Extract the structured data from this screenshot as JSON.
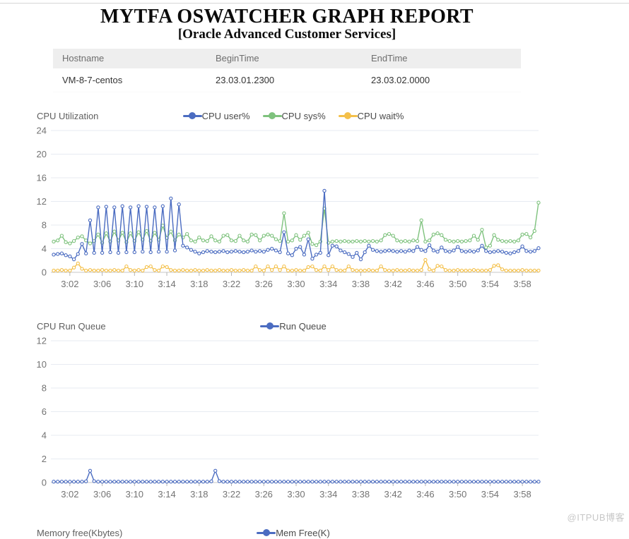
{
  "page": {
    "title": "MYTFA OSWATCHER GRAPH REPORT",
    "subtitle": "[Oracle Advanced Customer Services]",
    "watermark": "@ITPUB博客"
  },
  "info_table": {
    "columns": [
      "Hostname",
      "BeginTime",
      "EndTime"
    ],
    "rows": [
      [
        "VM-8-7-centos",
        "23.03.01.2300",
        "23.03.02.0000"
      ]
    ]
  },
  "style": {
    "grid_color": "#e7ebf2",
    "axis_color": "#c7c7c7",
    "tick_color": "#b5b5b5",
    "tick_label_color": "#737373"
  },
  "chart_data": [
    {
      "type": "line",
      "title": "CPU Utilization",
      "x_start": "3:00",
      "x_interval_seconds": 30,
      "x_tick_labels": [
        "3:02",
        "3:06",
        "3:10",
        "3:14",
        "3:18",
        "3:22",
        "3:26",
        "3:30",
        "3:34",
        "3:38",
        "3:42",
        "3:46",
        "3:50",
        "3:54",
        "3:58"
      ],
      "x_tick_first_index": 4,
      "x_tick_step": 8,
      "ylim": [
        0,
        24
      ],
      "yticks": [
        0,
        4,
        8,
        12,
        16,
        20,
        24
      ],
      "series": [
        {
          "name": "CPU user%",
          "color": "#4b6cc1",
          "values": [
            3.0,
            3.1,
            3.2,
            2.9,
            2.7,
            2.2,
            3.1,
            4.8,
            3.2,
            8.8,
            3.3,
            11.0,
            3.3,
            11.1,
            3.4,
            11.0,
            3.3,
            11.2,
            3.4,
            11.0,
            3.4,
            11.2,
            3.5,
            11.1,
            3.4,
            11.0,
            3.5,
            11.2,
            3.5,
            12.5,
            3.7,
            11.5,
            4.5,
            4.2,
            3.8,
            3.5,
            3.2,
            3.4,
            3.6,
            3.5,
            3.4,
            3.5,
            3.6,
            3.4,
            3.5,
            3.6,
            3.5,
            3.4,
            3.5,
            3.7,
            3.5,
            3.6,
            3.5,
            3.8,
            4.0,
            3.7,
            3.4,
            6.8,
            3.2,
            2.9,
            4.0,
            4.3,
            3.0,
            5.6,
            2.3,
            3.0,
            3.3,
            13.8,
            2.9,
            4.5,
            4.4,
            3.7,
            3.4,
            3.1,
            2.6,
            3.3,
            2.2,
            3.4,
            4.5,
            3.8,
            3.6,
            3.5,
            3.6,
            3.7,
            3.6,
            3.5,
            3.6,
            3.5,
            3.7,
            3.6,
            4.3,
            3.8,
            3.6,
            4.6,
            3.7,
            3.5,
            4.2,
            3.6,
            3.5,
            3.7,
            4.3,
            3.6,
            3.5,
            3.6,
            3.5,
            3.7,
            4.5,
            3.6,
            3.4,
            3.5,
            3.6,
            3.5,
            3.3,
            3.2,
            3.4,
            3.6,
            4.4,
            3.6,
            3.5,
            3.6,
            4.1
          ]
        },
        {
          "name": "CPU sys%",
          "color": "#7ec27d",
          "values": [
            5.2,
            5.4,
            6.2,
            5.1,
            4.9,
            5.3,
            5.9,
            6.1,
            5.4,
            4.9,
            5.3,
            6.4,
            5.0,
            6.6,
            5.2,
            6.9,
            5.4,
            6.7,
            5.1,
            6.6,
            5.3,
            6.8,
            5.5,
            7.0,
            5.3,
            6.7,
            5.5,
            7.9,
            5.8,
            6.9,
            5.4,
            6.4,
            5.9,
            6.5,
            5.4,
            5.2,
            5.9,
            5.4,
            5.3,
            6.1,
            5.4,
            5.2,
            6.2,
            6.3,
            5.4,
            5.3,
            6.2,
            5.4,
            5.2,
            6.4,
            6.3,
            5.4,
            6.2,
            6.4,
            6.2,
            5.6,
            5.3,
            10.0,
            5.2,
            5.4,
            6.3,
            5.5,
            6.2,
            6.7,
            4.8,
            4.6,
            5.2,
            10.8,
            5.0,
            5.2,
            5.3,
            5.2,
            5.3,
            5.2,
            5.2,
            5.3,
            5.2,
            5.3,
            5.2,
            5.3,
            5.2,
            5.4,
            6.3,
            6.5,
            6.2,
            5.4,
            5.2,
            5.3,
            5.2,
            5.4,
            5.3,
            8.8,
            5.2,
            5.4,
            6.4,
            6.6,
            6.3,
            5.5,
            5.3,
            5.2,
            5.3,
            5.2,
            5.3,
            5.4,
            6.2,
            5.5,
            7.2,
            4.2,
            4.5,
            6.3,
            5.5,
            5.3,
            5.2,
            5.3,
            5.2,
            5.4,
            6.4,
            6.5,
            5.9,
            7.0,
            11.8
          ]
        },
        {
          "name": "CPU wait%",
          "color": "#f4c04a",
          "values": [
            0.3,
            0.3,
            0.4,
            0.3,
            0.3,
            0.8,
            1.5,
            0.6,
            0.3,
            0.4,
            0.3,
            0.3,
            0.4,
            0.3,
            0.3,
            0.4,
            0.3,
            0.3,
            1.0,
            0.4,
            0.3,
            0.4,
            0.3,
            0.9,
            1.0,
            0.4,
            0.3,
            1.0,
            0.9,
            0.4,
            0.3,
            0.3,
            0.4,
            0.3,
            0.3,
            0.4,
            0.3,
            0.3,
            0.4,
            0.3,
            0.3,
            0.4,
            0.3,
            0.3,
            0.4,
            0.3,
            0.3,
            0.4,
            0.3,
            0.3,
            1.0,
            0.4,
            0.3,
            1.0,
            0.4,
            1.0,
            0.4,
            1.0,
            0.3,
            0.3,
            0.4,
            0.3,
            0.3,
            0.9,
            1.0,
            0.4,
            0.3,
            1.0,
            0.4,
            1.0,
            0.4,
            0.3,
            0.3,
            1.0,
            0.4,
            0.3,
            0.3,
            0.3,
            0.4,
            0.3,
            0.3,
            1.0,
            0.4,
            0.3,
            0.3,
            0.4,
            0.3,
            0.3,
            0.4,
            0.3,
            0.3,
            0.4,
            2.1,
            0.5,
            0.3,
            1.1,
            1.0,
            0.4,
            0.3,
            0.3,
            0.4,
            0.3,
            0.3,
            0.3,
            0.4,
            0.3,
            0.3,
            0.3,
            0.4,
            1.1,
            1.2,
            0.5,
            0.3,
            0.3,
            0.3,
            0.3,
            0.4,
            0.3,
            0.3,
            0.3,
            0.3
          ]
        }
      ]
    },
    {
      "type": "line",
      "title": "CPU Run Queue",
      "x_start": "3:00",
      "x_interval_seconds": 30,
      "x_tick_labels": [
        "3:02",
        "3:06",
        "3:10",
        "3:14",
        "3:18",
        "3:22",
        "3:26",
        "3:30",
        "3:34",
        "3:38",
        "3:42",
        "3:46",
        "3:50",
        "3:54",
        "3:58"
      ],
      "x_tick_first_index": 4,
      "x_tick_step": 8,
      "ylim": [
        0,
        12
      ],
      "yticks": [
        0,
        2,
        4,
        6,
        8,
        10,
        12
      ],
      "series": [
        {
          "name": "Run Queue",
          "color": "#4b6cc1",
          "values": [
            0.08,
            0.08,
            0.08,
            0.08,
            0.08,
            0.08,
            0.08,
            0.08,
            0.1,
            1.0,
            0.12,
            0.08,
            0.08,
            0.08,
            0.08,
            0.08,
            0.08,
            0.08,
            0.08,
            0.08,
            0.08,
            0.08,
            0.08,
            0.08,
            0.08,
            0.08,
            0.08,
            0.08,
            0.08,
            0.08,
            0.08,
            0.08,
            0.08,
            0.08,
            0.08,
            0.08,
            0.08,
            0.08,
            0.08,
            0.1,
            1.0,
            0.12,
            0.08,
            0.08,
            0.08,
            0.08,
            0.08,
            0.08,
            0.08,
            0.08,
            0.08,
            0.08,
            0.08,
            0.08,
            0.08,
            0.08,
            0.08,
            0.08,
            0.08,
            0.08,
            0.08,
            0.08,
            0.08,
            0.08,
            0.08,
            0.08,
            0.08,
            0.08,
            0.08,
            0.08,
            0.08,
            0.08,
            0.08,
            0.08,
            0.08,
            0.08,
            0.08,
            0.08,
            0.08,
            0.08,
            0.08,
            0.08,
            0.08,
            0.08,
            0.08,
            0.08,
            0.08,
            0.08,
            0.08,
            0.08,
            0.08,
            0.08,
            0.08,
            0.08,
            0.08,
            0.08,
            0.08,
            0.08,
            0.08,
            0.08,
            0.08,
            0.08,
            0.08,
            0.08,
            0.08,
            0.08,
            0.08,
            0.08,
            0.08,
            0.08,
            0.08,
            0.08,
            0.08,
            0.08,
            0.08,
            0.08,
            0.08,
            0.08,
            0.08,
            0.08,
            0.08
          ]
        }
      ]
    },
    {
      "type": "line",
      "title": "Memory free(Kbytes)",
      "series": [
        {
          "name": "Mem Free(K)",
          "color": "#4b6cc1"
        }
      ]
    }
  ]
}
